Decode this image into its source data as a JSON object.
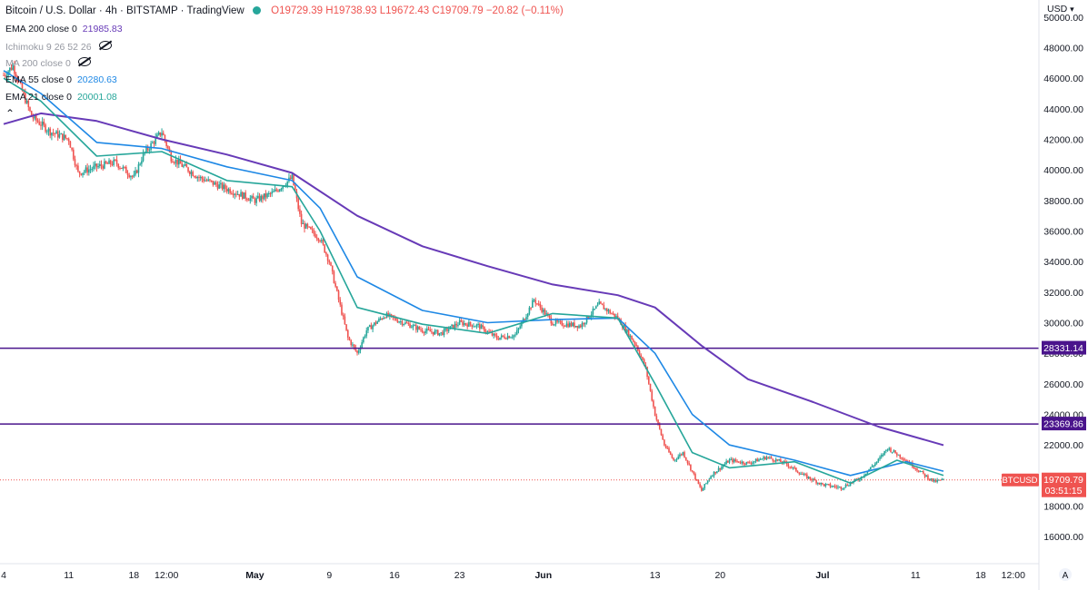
{
  "header": {
    "symbol": "Bitcoin / U.S. Dollar",
    "interval": "4h",
    "exchange": "BITSTAMP",
    "source": "TradingView",
    "open": "O19729.39",
    "high": "H19738.93",
    "low": "L19672.43",
    "close": "C19709.79",
    "change": "−20.82 (−0.11%)"
  },
  "indicators": [
    {
      "name": "EMA 200 close 0",
      "value": "21985.83",
      "color": "#673ab7",
      "muted": false,
      "hidden": false
    },
    {
      "name": "Ichimoku 9 26 52 26",
      "value": "",
      "color": "#9598a1",
      "muted": true,
      "hidden": true
    },
    {
      "name": "MA 200 close 0",
      "value": "",
      "color": "#9598a1",
      "muted": true,
      "hidden": true
    },
    {
      "name": "EMA 55 close 0",
      "value": "20280.63",
      "color": "#1e88e5",
      "muted": false,
      "hidden": false
    },
    {
      "name": "EMA 21 close 0",
      "value": "20001.08",
      "color": "#26a69a",
      "muted": false,
      "hidden": false
    }
  ],
  "currency": "USD",
  "collapse_icon": "chevron-up-icon",
  "price_badges": {
    "upper_line": "28331.14",
    "lower_line": "23369.86",
    "symbol_tag": "BTCUSD",
    "last_price": "19709.79",
    "countdown": "03:51:15"
  },
  "chart_data": {
    "type": "candlestick",
    "ylim": [
      14800,
      50500
    ],
    "y_ticks": [
      16000,
      18000,
      20000,
      22000,
      24000,
      26000,
      28000,
      30000,
      32000,
      34000,
      36000,
      38000,
      40000,
      42000,
      44000,
      46000,
      48000,
      50000
    ],
    "y_tick_labels": [
      "16000.00",
      "18000.00",
      "20000.00",
      "22000.00",
      "24000.00",
      "26000.00",
      "28000.00",
      "30000.00",
      "32000.00",
      "34000.00",
      "36000.00",
      "38000.00",
      "40000.00",
      "42000.00",
      "44000.00",
      "46000.00",
      "48000.00",
      "50000.00"
    ],
    "x_range": [
      "2022-04-04",
      "2022-07-23"
    ],
    "x_ticks": [
      {
        "label": "4",
        "date": "2022-04-04",
        "bold": false
      },
      {
        "label": "11",
        "date": "2022-04-11",
        "bold": false
      },
      {
        "label": "18",
        "date": "2022-04-18",
        "bold": false
      },
      {
        "label": "12:00",
        "date": "2022-04-21T12:00",
        "bold": false
      },
      {
        "label": "May",
        "date": "2022-05-01",
        "bold": true
      },
      {
        "label": "9",
        "date": "2022-05-09",
        "bold": false
      },
      {
        "label": "16",
        "date": "2022-05-16",
        "bold": false
      },
      {
        "label": "23",
        "date": "2022-05-23",
        "bold": false
      },
      {
        "label": "Jun",
        "date": "2022-06-01",
        "bold": true
      },
      {
        "label": "13",
        "date": "2022-06-13",
        "bold": false
      },
      {
        "label": "20",
        "date": "2022-06-20",
        "bold": false
      },
      {
        "label": "Jul",
        "date": "2022-07-01",
        "bold": true
      },
      {
        "label": "11",
        "date": "2022-07-11",
        "bold": false
      },
      {
        "label": "18",
        "date": "2022-07-18",
        "bold": false
      },
      {
        "label": "12:00",
        "date": "2022-07-21T12:00",
        "bold": false
      }
    ],
    "price_path": [
      [
        "2022-04-04",
        46200
      ],
      [
        "2022-04-05",
        46800
      ],
      [
        "2022-04-07",
        43500
      ],
      [
        "2022-04-09",
        42500
      ],
      [
        "2022-04-11",
        42000
      ],
      [
        "2022-04-12",
        39800
      ],
      [
        "2022-04-14",
        40200
      ],
      [
        "2022-04-16",
        40500
      ],
      [
        "2022-04-18",
        39500
      ],
      [
        "2022-04-19",
        41000
      ],
      [
        "2022-04-21",
        42500
      ],
      [
        "2022-04-22",
        40800
      ],
      [
        "2022-04-25",
        39500
      ],
      [
        "2022-04-27",
        39000
      ],
      [
        "2022-04-29",
        38500
      ],
      [
        "2022-05-01",
        38000
      ],
      [
        "2022-05-03",
        38500
      ],
      [
        "2022-05-05",
        39500
      ],
      [
        "2022-05-06",
        36500
      ],
      [
        "2022-05-08",
        35500
      ],
      [
        "2022-05-09",
        34000
      ],
      [
        "2022-05-10",
        31500
      ],
      [
        "2022-05-11",
        29000
      ],
      [
        "2022-05-12",
        28000
      ],
      [
        "2022-05-13",
        29500
      ],
      [
        "2022-05-15",
        30500
      ],
      [
        "2022-05-17",
        30000
      ],
      [
        "2022-05-19",
        29500
      ],
      [
        "2022-05-21",
        29300
      ],
      [
        "2022-05-23",
        30000
      ],
      [
        "2022-05-25",
        29800
      ],
      [
        "2022-05-27",
        29000
      ],
      [
        "2022-05-29",
        29200
      ],
      [
        "2022-05-31",
        31500
      ],
      [
        "2022-06-02",
        30000
      ],
      [
        "2022-06-05",
        29800
      ],
      [
        "2022-06-07",
        31200
      ],
      [
        "2022-06-09",
        30300
      ],
      [
        "2022-06-11",
        28500
      ],
      [
        "2022-06-12",
        27000
      ],
      [
        "2022-06-13",
        24000
      ],
      [
        "2022-06-14",
        22000
      ],
      [
        "2022-06-15",
        21000
      ],
      [
        "2022-06-16",
        21500
      ],
      [
        "2022-06-18",
        19000
      ],
      [
        "2022-06-19",
        20000
      ],
      [
        "2022-06-21",
        21000
      ],
      [
        "2022-06-23",
        20800
      ],
      [
        "2022-06-25",
        21200
      ],
      [
        "2022-06-27",
        20800
      ],
      [
        "2022-06-29",
        20000
      ],
      [
        "2022-07-01",
        19400
      ],
      [
        "2022-07-03",
        19200
      ],
      [
        "2022-07-05",
        19800
      ],
      [
        "2022-07-07",
        21000
      ],
      [
        "2022-07-08",
        21800
      ],
      [
        "2022-07-10",
        21000
      ],
      [
        "2022-07-12",
        20000
      ],
      [
        "2022-07-13",
        19600
      ],
      [
        "2022-07-14",
        19710
      ]
    ],
    "series": [
      {
        "name": "EMA 200 close 0",
        "color": "#673ab7",
        "values": [
          [
            "2022-04-04",
            43000
          ],
          [
            "2022-04-08",
            43700
          ],
          [
            "2022-04-14",
            43200
          ],
          [
            "2022-04-21",
            42000
          ],
          [
            "2022-04-28",
            41000
          ],
          [
            "2022-05-05",
            39800
          ],
          [
            "2022-05-12",
            37000
          ],
          [
            "2022-05-19",
            35000
          ],
          [
            "2022-05-26",
            33700
          ],
          [
            "2022-06-02",
            32500
          ],
          [
            "2022-06-09",
            31800
          ],
          [
            "2022-06-13",
            31000
          ],
          [
            "2022-06-18",
            28500
          ],
          [
            "2022-06-23",
            26300
          ],
          [
            "2022-06-30",
            24800
          ],
          [
            "2022-07-07",
            23200
          ],
          [
            "2022-07-14",
            21986
          ]
        ]
      },
      {
        "name": "EMA 55 close 0",
        "color": "#1e88e5",
        "values": [
          [
            "2022-04-04",
            46500
          ],
          [
            "2022-04-08",
            45000
          ],
          [
            "2022-04-14",
            41800
          ],
          [
            "2022-04-21",
            41400
          ],
          [
            "2022-04-28",
            40200
          ],
          [
            "2022-05-05",
            39300
          ],
          [
            "2022-05-08",
            37500
          ],
          [
            "2022-05-12",
            33000
          ],
          [
            "2022-05-19",
            30800
          ],
          [
            "2022-05-26",
            30000
          ],
          [
            "2022-06-02",
            30200
          ],
          [
            "2022-06-09",
            30300
          ],
          [
            "2022-06-13",
            28000
          ],
          [
            "2022-06-17",
            24000
          ],
          [
            "2022-06-21",
            22000
          ],
          [
            "2022-06-28",
            21000
          ],
          [
            "2022-07-04",
            20000
          ],
          [
            "2022-07-10",
            20900
          ],
          [
            "2022-07-14",
            20281
          ]
        ]
      },
      {
        "name": "EMA 21 close 0",
        "color": "#26a69a",
        "values": [
          [
            "2022-04-04",
            46000
          ],
          [
            "2022-04-08",
            44500
          ],
          [
            "2022-04-14",
            40900
          ],
          [
            "2022-04-21",
            41200
          ],
          [
            "2022-04-28",
            39300
          ],
          [
            "2022-05-05",
            38900
          ],
          [
            "2022-05-08",
            36000
          ],
          [
            "2022-05-12",
            31000
          ],
          [
            "2022-05-19",
            29900
          ],
          [
            "2022-05-26",
            29300
          ],
          [
            "2022-06-02",
            30600
          ],
          [
            "2022-06-09",
            30300
          ],
          [
            "2022-06-13",
            26000
          ],
          [
            "2022-06-17",
            21500
          ],
          [
            "2022-06-21",
            20500
          ],
          [
            "2022-06-28",
            20900
          ],
          [
            "2022-07-04",
            19500
          ],
          [
            "2022-07-09",
            21000
          ],
          [
            "2022-07-14",
            20001
          ]
        ]
      }
    ],
    "horizontal_lines": [
      {
        "price": 28331.14,
        "color": "#4a148c"
      },
      {
        "price": 23369.86,
        "color": "#4a148c"
      }
    ],
    "last_price": 19709.79,
    "up_color": "#26a69a",
    "down_color": "#ef5350",
    "grid": false,
    "legend": "top-left"
  }
}
